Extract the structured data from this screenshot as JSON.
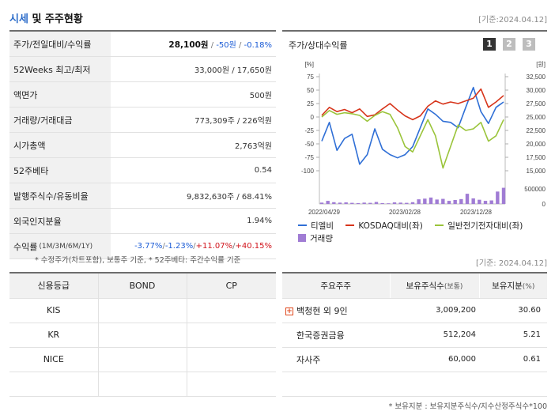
{
  "header": {
    "title_part1": "시세",
    "title_part2": " 및 주주현황",
    "date": "[기준:2024.04.12]"
  },
  "stock_rows": [
    {
      "label": "주가/전일대비/수익률"
    },
    {
      "label": "52Weeks 최고/최저",
      "value": "33,000원 / 17,650원"
    },
    {
      "label": "액면가",
      "value": "500원"
    },
    {
      "label": "거래량/거래대금",
      "value": "773,309주 / 226억원"
    },
    {
      "label": "시가총액",
      "value": "2,763억원"
    },
    {
      "label": "52주베타",
      "value": "0.54"
    },
    {
      "label": "발행주식수/유동비율",
      "value": "9,832,630주 / 68.41%"
    },
    {
      "label": "외국인지분율",
      "value": "1.94%"
    },
    {
      "label": "수익률",
      "label_sub": "(1M/3M/6M/1Y)"
    }
  ],
  "price": {
    "price": "28,100원",
    "sep1": " / ",
    "change": "-50원",
    "sep2": " / ",
    "rate": "-0.18%"
  },
  "returns": {
    "r1m": "-3.77%",
    "r3m": "-1.23%",
    "r6m": "+11.07%",
    "r1y": "+40.15%",
    "sep": "/"
  },
  "note1": "* 수정주가(차트포함), 보통주 기준, * 52주베타: 주간수익률 기준",
  "chart": {
    "title": "주가/상대수익률",
    "pages": [
      "1",
      "2",
      "3"
    ],
    "legend": [
      {
        "label": "티엘비",
        "color": "#2f6fd6"
      },
      {
        "label": "KOSDAQ대비(좌)",
        "color": "#d7351b"
      },
      {
        "label": "일반전기전자대비(좌)",
        "color": "#9ac43a"
      },
      {
        "label": "거래량",
        "color": "#a07cd4"
      }
    ]
  },
  "chart_data": {
    "type": "line",
    "left_axis": {
      "unit": "[%]",
      "ticks": [
        "75",
        "50",
        "25",
        "0",
        "-25",
        "-50",
        "-75",
        "-100"
      ],
      "range": [
        -100,
        75
      ]
    },
    "right_axis": {
      "unit": "[원]",
      "ticks": [
        "32,500",
        "30,000",
        "27,500",
        "25,000",
        "22,500",
        "20,000",
        "17,500",
        "15,000"
      ],
      "range": [
        15000,
        32500
      ]
    },
    "volume_axis": {
      "ticks": [
        "500000",
        "0"
      ],
      "range": [
        0,
        1000000
      ]
    },
    "x_labels": [
      "2022/04/29",
      "2023/02/28",
      "2023/12/28"
    ],
    "series": [
      {
        "name": "티엘비",
        "axis": "left",
        "color": "#2f6fd6",
        "values": [
          -45,
          -10,
          -62,
          -40,
          -32,
          -88,
          -70,
          -22,
          -60,
          -70,
          -76,
          -70,
          -55,
          -20,
          15,
          5,
          -8,
          -10,
          -20,
          18,
          55,
          10,
          -12,
          18,
          28
        ]
      },
      {
        "name": "KOSDAQ대비(좌)",
        "axis": "left",
        "color": "#d7351b",
        "values": [
          3,
          18,
          10,
          14,
          8,
          15,
          1,
          4,
          15,
          25,
          13,
          2,
          -5,
          2,
          20,
          30,
          24,
          28,
          25,
          30,
          35,
          52,
          18,
          28,
          40
        ]
      },
      {
        "name": "일반전기전자대비(좌)",
        "axis": "left",
        "color": "#9ac43a",
        "values": [
          0,
          12,
          5,
          8,
          6,
          3,
          -8,
          3,
          10,
          5,
          -20,
          -55,
          -65,
          -35,
          -5,
          -35,
          -95,
          -55,
          -15,
          -25,
          -22,
          -10,
          -45,
          -35,
          -5
        ]
      }
    ],
    "volume": [
      60000,
      140000,
      80000,
      60000,
      70000,
      50000,
      40000,
      60000,
      50000,
      90000,
      40000,
      30000,
      70000,
      60000,
      50000,
      80000,
      210000,
      240000,
      290000,
      200000,
      230000,
      140000,
      180000,
      220000,
      460000,
      250000,
      190000,
      140000,
      160000,
      560000,
      730000
    ]
  },
  "date2": "[기준: 2024.04.12]",
  "credit": {
    "headers": [
      "신용등급",
      "BOND",
      "CP"
    ],
    "rows": [
      {
        "agency": "KIS",
        "bond": "",
        "cp": ""
      },
      {
        "agency": "KR",
        "bond": "",
        "cp": ""
      },
      {
        "agency": "NICE",
        "bond": "",
        "cp": ""
      },
      {
        "agency": "",
        "bond": "",
        "cp": ""
      }
    ]
  },
  "holders": {
    "headers": {
      "name": "주요주주",
      "shares": "보유주식수",
      "shares_unit": "(보통)",
      "pct": "보유지분",
      "pct_unit": "(%)"
    },
    "expand_icon": "+",
    "rows": [
      {
        "name": "백청현 외 9인",
        "shares": "3,009,200",
        "pct": "30.60"
      },
      {
        "name": "한국증권금융",
        "shares": "512,204",
        "pct": "5.21"
      },
      {
        "name": "자사주",
        "shares": "60,000",
        "pct": "0.61"
      },
      {
        "name": "",
        "shares": "",
        "pct": ""
      }
    ]
  },
  "note2": "* 보유지분 : 보유지분주식수/지수산정주식수*100"
}
